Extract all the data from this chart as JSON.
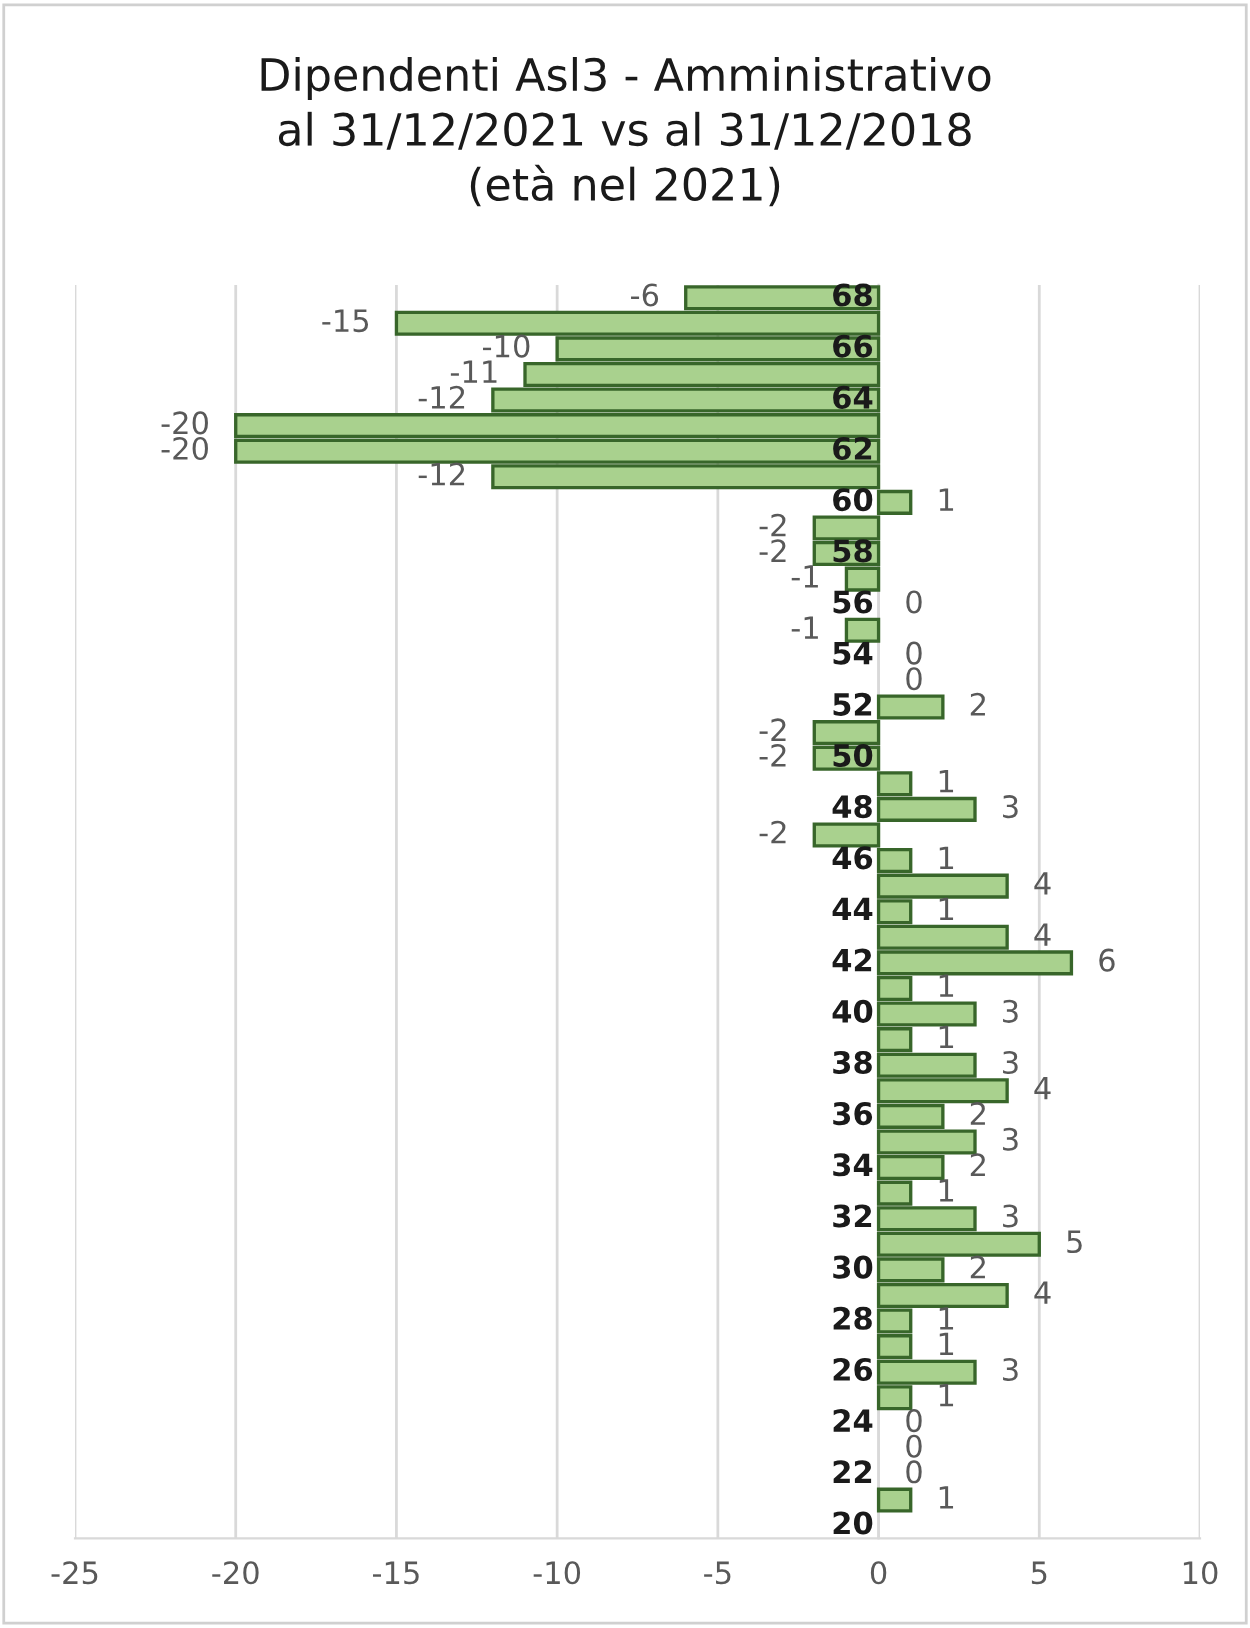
{
  "chart_data": {
    "type": "bar",
    "orientation": "horizontal",
    "title": "Dipendenti Asl3 - Amministrativo\nal 31/12/2021 vs al 31/12/2018\n(età nel 2021)",
    "categories": [
      "68",
      null,
      "66",
      null,
      "64",
      null,
      "62",
      null,
      "60",
      null,
      "58",
      null,
      "56",
      null,
      "54",
      null,
      "52",
      null,
      "50",
      null,
      "48",
      null,
      "46",
      null,
      "44",
      null,
      "42",
      null,
      "40",
      null,
      "38",
      null,
      "36",
      null,
      "34",
      null,
      "32",
      null,
      "30",
      null,
      "28",
      null,
      "26",
      null,
      "24",
      null,
      "22",
      null,
      "20"
    ],
    "values": [
      -6,
      -15,
      -10,
      -11,
      -12,
      -20,
      -20,
      -12,
      1,
      -2,
      -2,
      -1,
      0,
      -1,
      0,
      0,
      2,
      -2,
      -2,
      1,
      3,
      -2,
      1,
      4,
      1,
      4,
      6,
      1,
      3,
      1,
      3,
      4,
      2,
      3,
      2,
      1,
      3,
      5,
      2,
      4,
      1,
      1,
      3,
      1,
      0,
      0,
      0,
      1,
      null
    ],
    "color": "#a9d18e",
    "xlim": [
      -25,
      10
    ],
    "xticks": [
      -25,
      -20,
      -15,
      -10,
      -5,
      0,
      5,
      10
    ],
    "grid": "x",
    "data_labels": true,
    "legend": false
  }
}
